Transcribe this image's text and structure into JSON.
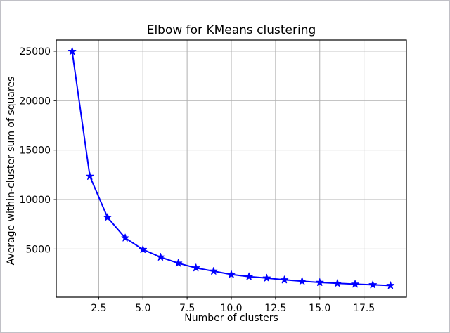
{
  "figure": {
    "background": "#ffffff",
    "border_color": "#c0c0c6"
  },
  "chart_data": {
    "type": "line",
    "title": "Elbow for KMeans clustering",
    "xlabel": "Number of clusters",
    "ylabel": "Average within-cluster sum of squares",
    "x": [
      1,
      2,
      3,
      4,
      5,
      6,
      7,
      8,
      9,
      10,
      11,
      12,
      13,
      14,
      15,
      16,
      17,
      18,
      19
    ],
    "y": [
      24980,
      12350,
      8200,
      6120,
      4950,
      4180,
      3570,
      3090,
      2760,
      2430,
      2210,
      2060,
      1880,
      1750,
      1620,
      1530,
      1450,
      1380,
      1310
    ],
    "x_ticks": [
      2.5,
      5.0,
      7.5,
      10.0,
      12.5,
      15.0,
      17.5
    ],
    "x_tick_labels": [
      "2.5",
      "5.0",
      "7.5",
      "10.0",
      "12.5",
      "15.0",
      "17.5"
    ],
    "y_ticks": [
      5000,
      10000,
      15000,
      20000,
      25000
    ],
    "y_tick_labels": [
      "5000",
      "10000",
      "15000",
      "20000",
      "25000"
    ],
    "xlim": [
      0.1,
      19.9
    ],
    "ylim": [
      128,
      26132
    ],
    "grid": true,
    "legend": "none",
    "line_color": "#0000ff",
    "line_width": 2,
    "marker": "star",
    "marker_size": 11,
    "grid_color": "#b0b0b0",
    "axis_color": "#000000",
    "tick_font_size": 14,
    "title_font_size": 17
  }
}
